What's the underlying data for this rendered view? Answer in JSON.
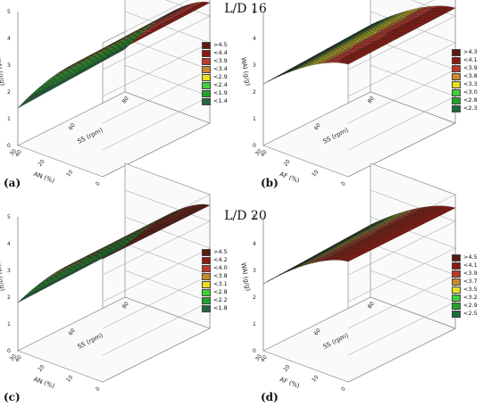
{
  "section_titles": [
    "L/D 16",
    "L/D 20"
  ],
  "chart_data": [
    {
      "id": "a",
      "type": "surface",
      "panel_label": "(a)",
      "xlabel": "AN (%)",
      "ylabel": "SS (rpm)",
      "zlabel": "WAI (g/g)",
      "x_range": [
        0,
        30
      ],
      "y_range": [
        40,
        80
      ],
      "z_range": [
        0,
        5
      ],
      "x_ticks": [
        "0",
        "10",
        "20",
        "30"
      ],
      "y_ticks": [
        "40",
        "60",
        "80"
      ],
      "z_ticks": [
        "0",
        "1",
        "2",
        "3",
        "4",
        "5"
      ],
      "surface_corners": {
        "x0_y40": 4.4,
        "x30_y40": 1.4,
        "x0_y80": 4.5,
        "x30_y80": 1.6
      },
      "legend": [
        ">4.5",
        "<4.4",
        "<3.9",
        "<3.4",
        "<2.9",
        "<2.4",
        "<1.9",
        "<1.4"
      ],
      "levels": [
        4.5,
        4.4,
        3.9,
        3.4,
        2.9,
        2.4,
        1.9,
        1.4
      ]
    },
    {
      "id": "b",
      "type": "surface",
      "panel_label": "(b)",
      "xlabel": "AF (%)",
      "ylabel": "SS (rpm)",
      "zlabel": "WAI (g/g)",
      "x_range": [
        0,
        30
      ],
      "y_range": [
        40,
        80
      ],
      "z_range": [
        0,
        5
      ],
      "x_ticks": [
        "0",
        "10",
        "20",
        "30"
      ],
      "y_ticks": [
        "40",
        "60",
        "80"
      ],
      "z_ticks": [
        "0",
        "1",
        "2",
        "3",
        "4",
        "5"
      ],
      "surface_corners": {
        "x0_y40": 4.2,
        "x30_y40": 2.3,
        "x0_y80": 4.3,
        "x30_y80": 2.5
      },
      "legend": [
        ">4.3",
        "<4.1",
        "<3.9",
        "<3.8",
        "<3.3",
        "<3.0",
        "<2.8",
        "<2.3"
      ],
      "levels": [
        4.3,
        4.1,
        3.9,
        3.8,
        3.3,
        3.0,
        2.8,
        2.3
      ]
    },
    {
      "id": "c",
      "type": "surface",
      "panel_label": "(c)",
      "xlabel": "AN (%)",
      "ylabel": "SS (rpm)",
      "zlabel": "WAI (g/g)",
      "x_range": [
        0,
        30
      ],
      "y_range": [
        40,
        80
      ],
      "z_range": [
        0,
        5
      ],
      "x_ticks": [
        "0",
        "10",
        "20",
        "30"
      ],
      "y_ticks": [
        "40",
        "60",
        "80"
      ],
      "z_ticks": [
        "0",
        "1",
        "2",
        "3",
        "4",
        "5"
      ],
      "surface_corners": {
        "x0_y40": 4.6,
        "x30_y40": 1.8,
        "x0_y80": 4.6,
        "x30_y80": 1.9
      },
      "legend": [
        ">4.5",
        "<4.2",
        "<4.0",
        "<3.8",
        "<3.1",
        "<2.8",
        "<2.2",
        "<1.8"
      ],
      "levels": [
        4.5,
        4.2,
        4.0,
        3.8,
        3.1,
        2.8,
        2.2,
        1.8
      ]
    },
    {
      "id": "d",
      "type": "surface",
      "panel_label": "(d)",
      "xlabel": "AF (%)",
      "ylabel": "SS (rpm)",
      "zlabel": "WAI (g/g)",
      "x_range": [
        0,
        30
      ],
      "y_range": [
        40,
        80
      ],
      "z_range": [
        0,
        5
      ],
      "x_ticks": [
        "0",
        "10",
        "20",
        "30"
      ],
      "y_ticks": [
        "40",
        "60",
        "80"
      ],
      "z_ticks": [
        "0",
        "1",
        "2",
        "3",
        "4",
        "5"
      ],
      "surface_corners": {
        "x0_y40": 4.5,
        "x30_y40": 2.5,
        "x0_y80": 4.5,
        "x30_y80": 2.7
      },
      "legend": [
        ">4.5",
        "<4.1",
        "<3.9",
        "<3.7",
        "<3.5",
        "<3.2",
        "<2.9",
        "<2.5"
      ],
      "levels": [
        4.5,
        4.1,
        3.9,
        3.7,
        3.5,
        3.2,
        2.9,
        2.5
      ]
    }
  ],
  "legend_colors": [
    "#5a1a10",
    "#8b1a10",
    "#c0392b",
    "#c98a2e",
    "#e8e020",
    "#3fd13a",
    "#22a32a",
    "#1f6b3a"
  ]
}
